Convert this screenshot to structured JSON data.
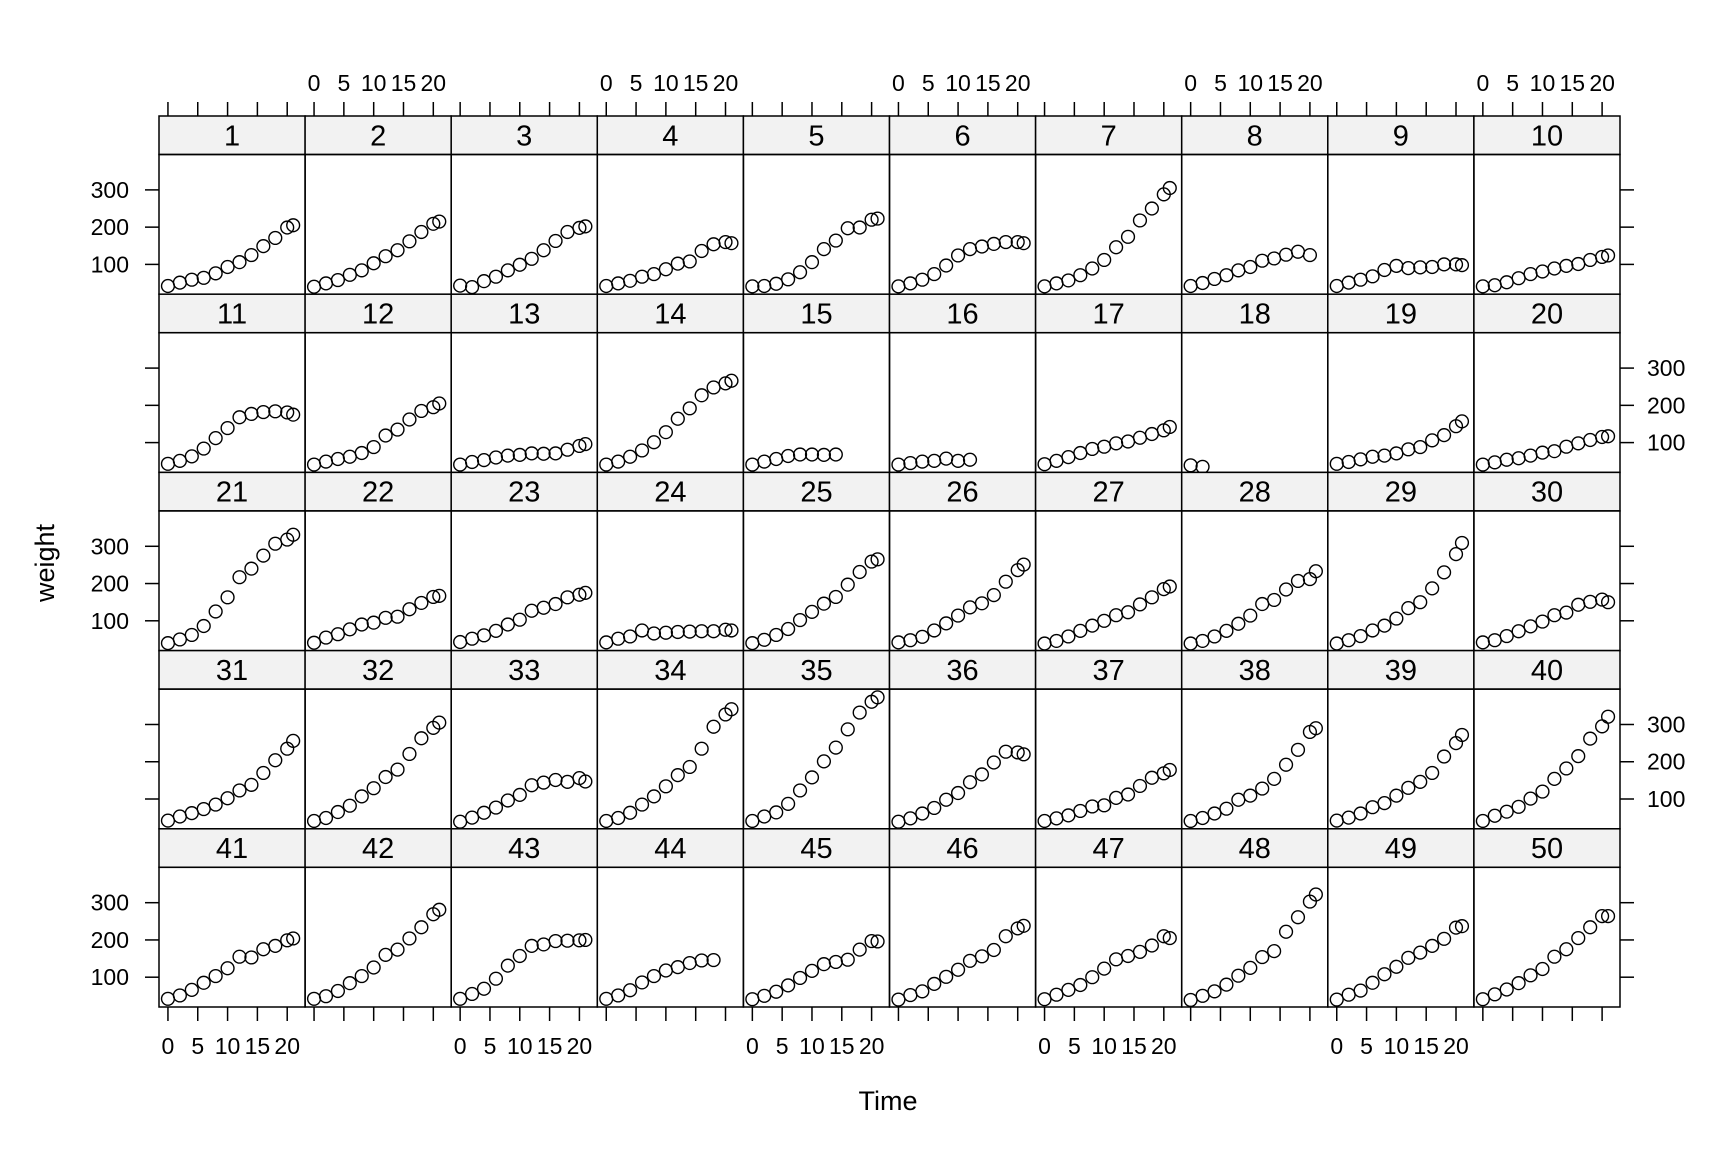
{
  "chart_data": {
    "type": "scatter",
    "layout": "trellis 10x5",
    "xlabel": "Time",
    "ylabel": "weight",
    "x_ticks": [
      0,
      5,
      10,
      15,
      20
    ],
    "x_tick_labels": [
      "0",
      "5",
      "10",
      "15",
      "20"
    ],
    "y_ticks": [
      100,
      200,
      300
    ],
    "y_tick_labels": [
      "100",
      "200",
      "300"
    ],
    "xlim": [
      -1.5,
      23
    ],
    "ylim": [
      20,
      395
    ],
    "x": [
      0,
      2,
      4,
      6,
      8,
      10,
      12,
      14,
      16,
      18,
      20,
      21
    ],
    "panels": [
      {
        "label": "1",
        "values": [
          42,
          51,
          59,
          64,
          76,
          93,
          106,
          125,
          149,
          171,
          199,
          205
        ]
      },
      {
        "label": "2",
        "values": [
          40,
          49,
          58,
          72,
          84,
          103,
          122,
          138,
          162,
          187,
          209,
          215
        ]
      },
      {
        "label": "3",
        "values": [
          43,
          39,
          55,
          67,
          84,
          99,
          115,
          138,
          163,
          187,
          198,
          202
        ]
      },
      {
        "label": "4",
        "values": [
          42,
          49,
          56,
          67,
          74,
          87,
          102,
          108,
          136,
          154,
          160,
          157
        ]
      },
      {
        "label": "5",
        "values": [
          41,
          42,
          48,
          60,
          79,
          106,
          141,
          164,
          197,
          199,
          220,
          223
        ]
      },
      {
        "label": "6",
        "values": [
          41,
          49,
          59,
          74,
          97,
          124,
          141,
          148,
          155,
          160,
          160,
          157
        ]
      },
      {
        "label": "7",
        "values": [
          41,
          49,
          57,
          71,
          89,
          112,
          146,
          174,
          218,
          250,
          288,
          305
        ]
      },
      {
        "label": "8",
        "values": [
          42,
          50,
          61,
          71,
          84,
          93,
          110,
          116,
          126,
          134,
          125
        ]
      },
      {
        "label": "9",
        "values": [
          42,
          51,
          59,
          68,
          85,
          96,
          90,
          92,
          93,
          100,
          100,
          98
        ]
      },
      {
        "label": "10",
        "values": [
          41,
          44,
          52,
          63,
          74,
          81,
          89,
          96,
          101,
          112,
          120,
          124
        ]
      },
      {
        "label": "11",
        "values": [
          43,
          51,
          63,
          84,
          112,
          139,
          168,
          177,
          182,
          184,
          181,
          175
        ]
      },
      {
        "label": "12",
        "values": [
          41,
          49,
          56,
          62,
          72,
          88,
          119,
          135,
          162,
          185,
          195,
          205
        ]
      },
      {
        "label": "13",
        "values": [
          41,
          48,
          53,
          60,
          65,
          67,
          71,
          70,
          71,
          81,
          91,
          96
        ]
      },
      {
        "label": "14",
        "values": [
          41,
          49,
          62,
          79,
          101,
          128,
          164,
          192,
          227,
          248,
          259,
          266
        ]
      },
      {
        "label": "15",
        "values": [
          41,
          49,
          56,
          64,
          68,
          68,
          67,
          68
        ]
      },
      {
        "label": "16",
        "values": [
          41,
          45,
          49,
          51,
          57,
          51,
          54
        ]
      },
      {
        "label": "17",
        "values": [
          42,
          51,
          61,
          72,
          83,
          89,
          98,
          103,
          113,
          123,
          133,
          142
        ]
      },
      {
        "label": "18",
        "values": [
          39,
          35
        ]
      },
      {
        "label": "19",
        "values": [
          43,
          48,
          55,
          62,
          65,
          71,
          82,
          88,
          106,
          120,
          144,
          157
        ]
      },
      {
        "label": "20",
        "values": [
          41,
          47,
          54,
          58,
          65,
          73,
          77,
          89,
          98,
          107,
          115,
          117
        ]
      },
      {
        "label": "21",
        "values": [
          40,
          50,
          62,
          86,
          125,
          163,
          217,
          240,
          275,
          307,
          318,
          331
        ]
      },
      {
        "label": "22",
        "values": [
          41,
          55,
          64,
          77,
          90,
          95,
          108,
          111,
          131,
          148,
          164,
          167
        ]
      },
      {
        "label": "23",
        "values": [
          43,
          52,
          61,
          73,
          90,
          103,
          127,
          135,
          145,
          163,
          170,
          175
        ]
      },
      {
        "label": "24",
        "values": [
          42,
          52,
          58,
          74,
          66,
          68,
          70,
          71,
          72,
          72,
          76,
          74
        ]
      },
      {
        "label": "25",
        "values": [
          40,
          49,
          62,
          78,
          102,
          124,
          146,
          164,
          197,
          231,
          259,
          265
        ]
      },
      {
        "label": "26",
        "values": [
          42,
          48,
          57,
          74,
          93,
          114,
          136,
          147,
          169,
          205,
          236,
          251
        ]
      },
      {
        "label": "27",
        "values": [
          39,
          46,
          58,
          73,
          87,
          100,
          115,
          123,
          144,
          163,
          185,
          192
        ]
      },
      {
        "label": "28",
        "values": [
          39,
          46,
          58,
          73,
          92,
          114,
          145,
          156,
          184,
          207,
          212,
          233
        ]
      },
      {
        "label": "29",
        "values": [
          39,
          48,
          59,
          74,
          87,
          106,
          134,
          150,
          187,
          230,
          279,
          309
        ]
      },
      {
        "label": "30",
        "values": [
          42,
          48,
          59,
          72,
          85,
          98,
          115,
          122,
          143,
          151,
          157,
          150
        ]
      },
      {
        "label": "31",
        "values": [
          42,
          53,
          62,
          73,
          85,
          102,
          123,
          138,
          170,
          204,
          235,
          256
        ]
      },
      {
        "label": "32",
        "values": [
          41,
          49,
          65,
          82,
          107,
          129,
          159,
          179,
          221,
          263,
          291,
          305
        ]
      },
      {
        "label": "33",
        "values": [
          39,
          50,
          63,
          77,
          96,
          111,
          137,
          144,
          151,
          146,
          156,
          147
        ]
      },
      {
        "label": "34",
        "values": [
          41,
          49,
          63,
          85,
          107,
          134,
          164,
          186,
          235,
          294,
          327,
          341
        ]
      },
      {
        "label": "35",
        "values": [
          41,
          53,
          64,
          87,
          123,
          158,
          201,
          238,
          287,
          332,
          361,
          373
        ]
      },
      {
        "label": "36",
        "values": [
          39,
          48,
          61,
          76,
          98,
          116,
          145,
          166,
          198,
          227,
          225,
          220
        ]
      },
      {
        "label": "37",
        "values": [
          41,
          48,
          56,
          68,
          80,
          83,
          103,
          112,
          135,
          157,
          169,
          178
        ]
      },
      {
        "label": "38",
        "values": [
          41,
          49,
          61,
          74,
          98,
          109,
          128,
          154,
          192,
          232,
          280,
          290
        ]
      },
      {
        "label": "39",
        "values": [
          42,
          50,
          61,
          78,
          89,
          109,
          130,
          146,
          170,
          214,
          250,
          272
        ]
      },
      {
        "label": "40",
        "values": [
          41,
          55,
          66,
          79,
          101,
          120,
          154,
          182,
          215,
          262,
          295,
          321
        ]
      },
      {
        "label": "41",
        "values": [
          42,
          51,
          66,
          85,
          103,
          124,
          155,
          153,
          175,
          184,
          199,
          204
        ]
      },
      {
        "label": "42",
        "values": [
          42,
          49,
          63,
          84,
          103,
          126,
          160,
          174,
          204,
          234,
          269,
          281
        ]
      },
      {
        "label": "43",
        "values": [
          42,
          55,
          69,
          96,
          131,
          157,
          184,
          188,
          197,
          198,
          199,
          200
        ]
      },
      {
        "label": "44",
        "values": [
          42,
          51,
          65,
          86,
          103,
          118,
          127,
          138,
          145,
          146
        ]
      },
      {
        "label": "45",
        "values": [
          41,
          50,
          61,
          78,
          98,
          117,
          135,
          141,
          147,
          174,
          197,
          196
        ]
      },
      {
        "label": "46",
        "values": [
          40,
          52,
          62,
          82,
          101,
          120,
          144,
          156,
          173,
          210,
          231,
          238
        ]
      },
      {
        "label": "47",
        "values": [
          41,
          53,
          66,
          79,
          100,
          123,
          148,
          157,
          168,
          185,
          210,
          205
        ]
      },
      {
        "label": "48",
        "values": [
          39,
          50,
          62,
          80,
          104,
          125,
          154,
          170,
          222,
          261,
          303,
          322
        ]
      },
      {
        "label": "49",
        "values": [
          40,
          53,
          64,
          85,
          108,
          128,
          152,
          166,
          184,
          203,
          233,
          237
        ]
      },
      {
        "label": "50",
        "values": [
          41,
          54,
          67,
          84,
          105,
          122,
          155,
          175,
          205,
          234,
          264,
          264
        ]
      }
    ]
  }
}
